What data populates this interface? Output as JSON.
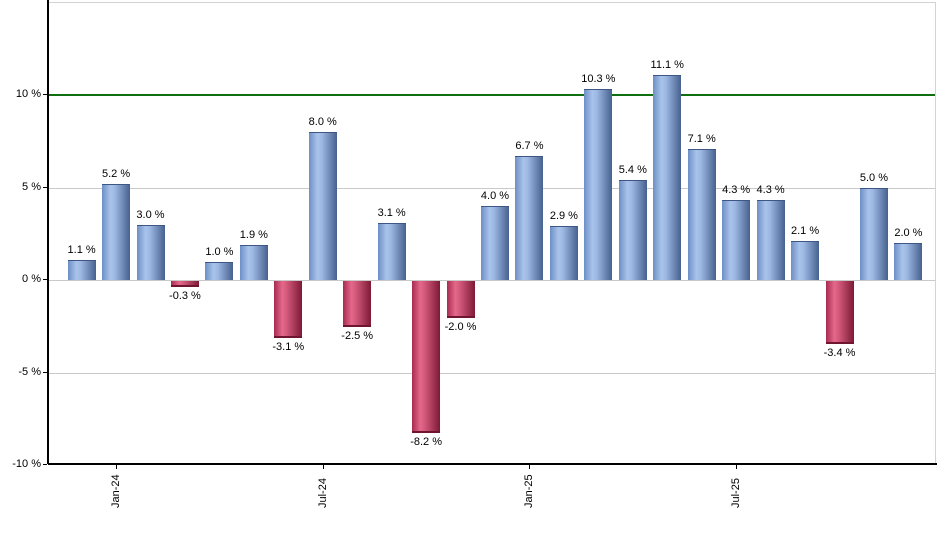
{
  "chart_data": {
    "type": "bar",
    "title": "",
    "xlabel": "",
    "ylabel": "",
    "ylim": [
      -10,
      15
    ],
    "grid": "horizontal",
    "values": [
      1.1,
      5.2,
      3.0,
      -0.3,
      1.0,
      1.9,
      -3.1,
      8.0,
      -2.5,
      3.1,
      -8.2,
      -2.0,
      4.0,
      6.7,
      2.9,
      10.3,
      5.4,
      11.1,
      7.1,
      4.3,
      4.3,
      2.1,
      -3.4,
      5.0,
      2.0
    ],
    "bar_labels": [
      "1.1 %",
      "5.2 %",
      "3.0 %",
      "-0.3 %",
      "1.0 %",
      "1.9 %",
      "-3.1 %",
      "8.0 %",
      "-2.5 %",
      "3.1 %",
      "-8.2 %",
      "-2.0 %",
      "4.0 %",
      "6.7 %",
      "2.9 %",
      "10.3 %",
      "5.4 %",
      "11.1 %",
      "7.1 %",
      "4.3 %",
      "4.3 %",
      "2.1 %",
      "-3.4 %",
      "5.0 %",
      "2.0 %"
    ],
    "x_ticks": [
      {
        "label": "Jan-24",
        "bar_index": 1
      },
      {
        "label": "Jul-24",
        "bar_index": 7
      },
      {
        "label": "Jan-25",
        "bar_index": 13
      },
      {
        "label": "Jul-25",
        "bar_index": 19
      }
    ],
    "y_ticks": [
      {
        "label": "10 %",
        "value": 10
      },
      {
        "label": "5 %",
        "value": 5
      },
      {
        "label": "0 %",
        "value": 0
      },
      {
        "label": "-5 %",
        "value": -5
      },
      {
        "label": "-10 %",
        "value": -10
      }
    ],
    "grid_values": [
      5,
      0,
      -5
    ],
    "threshold_line": {
      "value": 10,
      "color": "#0f6e0f"
    },
    "colors": {
      "positive_gradient": [
        [
          "#6d8fc6",
          0
        ],
        [
          "#a9c3ea",
          30
        ],
        [
          "#9db9e4",
          45
        ],
        [
          "#47618e",
          100
        ]
      ],
      "positive_edge": "#3d5683",
      "negative_gradient": [
        [
          "#a82a52",
          0
        ],
        [
          "#e4688a",
          30
        ],
        [
          "#d45a7c",
          45
        ],
        [
          "#7d1936",
          100
        ]
      ],
      "negative_edge": "#701530",
      "grid": "#c9c9c9",
      "axis": "#000000",
      "text": "#000000",
      "background": "#ffffff"
    }
  }
}
